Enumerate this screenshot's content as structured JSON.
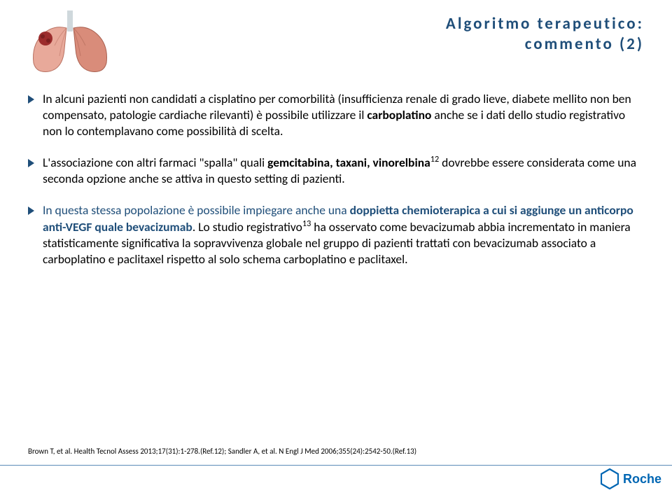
{
  "title_color": "#1f4e79",
  "body_color": "#000000",
  "accent_color_primary": "#1f4e79",
  "line_color": "#5b8cb8",
  "logo_color": "#0066b3",
  "title_line1": "Algoritmo terapeutico:",
  "title_line2": "commento (2)",
  "bullets": [
    {
      "triangle_color": "#1f4e79",
      "segments": [
        {
          "text": "In alcuni pazienti non candidati a cisplatino per comorbilità (insufficienza renale di grado lieve, diabete mellito non ben compensato, patologie cardiache rilevanti) è possibile utilizzare il ",
          "bold": false
        },
        {
          "text": "carboplatino",
          "bold": true
        },
        {
          "text": " anche se i dati dello studio registrativo non lo contemplavano come possibilità di scelta.",
          "bold": false
        }
      ]
    },
    {
      "triangle_color": "#1f4e79",
      "segments": [
        {
          "text": "L'associazione con altri farmaci \"spalla\" quali ",
          "bold": false
        },
        {
          "text": "gemcitabina, taxani, vinorelbina",
          "bold": true
        },
        {
          "text": "12",
          "sup": true
        },
        {
          "text": " dovrebbe essere considerata come una seconda opzione anche se attiva in questo setting di pazienti.",
          "bold": false
        }
      ]
    },
    {
      "triangle_color": "#1f4e79",
      "text_color": "#1f4e79",
      "segments": [
        {
          "text": "In questa stessa popolazione è possibile impiegare anche una ",
          "bold": false,
          "color": "#1f4e79"
        },
        {
          "text": "doppietta chemioterapica a cui si aggiunge un anticorpo anti-VEGF quale bevacizumab",
          "bold": true,
          "color": "#1f4e79"
        },
        {
          "text": ". Lo studio registrativo",
          "bold": false,
          "color": "#000000"
        },
        {
          "text": "13",
          "sup": true,
          "color": "#000000"
        },
        {
          "text": " ha osservato come bevacizumab abbia incrementato in maniera statisticamente significativa la sopravvivenza globale nel gruppo di pazienti trattati con bevacizumab associato a carboplatino e paclitaxel rispetto al solo schema carboplatino e paclitaxel.",
          "bold": false,
          "color": "#000000"
        }
      ]
    }
  ],
  "references": "Brown T, et al. Health Tecnol Assess 2013;17(31):1-278.(Ref.12); Sandler A, et al. N Engl J Med 2006;355(24):2542-50.(Ref.13)",
  "logo_text": "Roche",
  "lungs": {
    "left_color": "#e8a99a",
    "right_color": "#d98c7a",
    "tumor_color": "#9b2c2c",
    "trachea_color": "#cfd8dc"
  }
}
